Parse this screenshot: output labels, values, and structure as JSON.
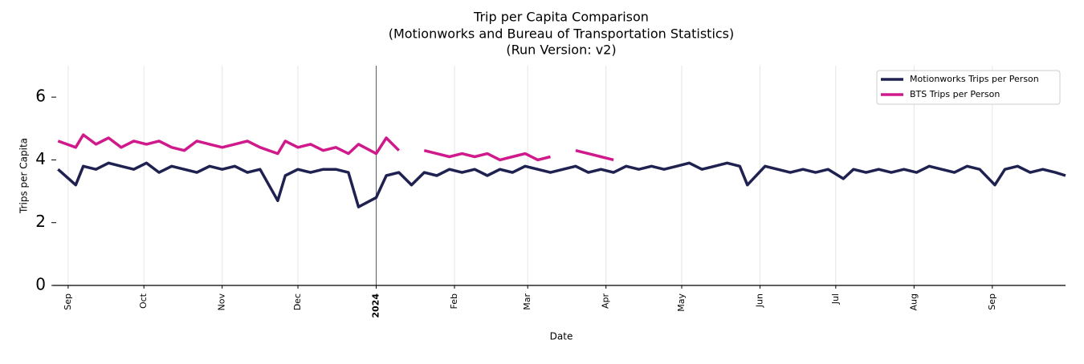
{
  "chart_data": {
    "type": "line",
    "title_lines": [
      "Trip per Capita Comparison",
      "(Motionworks and Bureau of Transportation Statistics)",
      "(Run Version: v2)"
    ],
    "x_label": "Date",
    "y_label": "Trips per Capita",
    "x": [
      "2023-08-28",
      "2023-09-04",
      "2023-09-07",
      "2023-09-12",
      "2023-09-17",
      "2023-09-22",
      "2023-09-27",
      "2023-10-02",
      "2023-10-07",
      "2023-10-12",
      "2023-10-17",
      "2023-10-22",
      "2023-10-27",
      "2023-11-01",
      "2023-11-06",
      "2023-11-11",
      "2023-11-16",
      "2023-11-23",
      "2023-11-26",
      "2023-12-01",
      "2023-12-06",
      "2023-12-11",
      "2023-12-16",
      "2023-12-21",
      "2023-12-25",
      "2024-01-01",
      "2024-01-05",
      "2024-01-10",
      "2024-01-15",
      "2024-01-20",
      "2024-01-25",
      "2024-01-30",
      "2024-02-04",
      "2024-02-09",
      "2024-02-14",
      "2024-02-19",
      "2024-02-24",
      "2024-02-29",
      "2024-03-05",
      "2024-03-10",
      "2024-03-15",
      "2024-03-20",
      "2024-03-25",
      "2024-03-30",
      "2024-04-04",
      "2024-04-09",
      "2024-04-14",
      "2024-04-19",
      "2024-04-24",
      "2024-04-29",
      "2024-05-04",
      "2024-05-09",
      "2024-05-14",
      "2024-05-19",
      "2024-05-24",
      "2024-05-27",
      "2024-06-03",
      "2024-06-08",
      "2024-06-13",
      "2024-06-18",
      "2024-06-23",
      "2024-06-28",
      "2024-07-04",
      "2024-07-08",
      "2024-07-13",
      "2024-07-18",
      "2024-07-23",
      "2024-07-28",
      "2024-08-02",
      "2024-08-07",
      "2024-08-12",
      "2024-08-17",
      "2024-08-22",
      "2024-08-27",
      "2024-09-02",
      "2024-09-06",
      "2024-09-11",
      "2024-09-16",
      "2024-09-21",
      "2024-09-26",
      "2024-09-30"
    ],
    "series": [
      {
        "name": "Motionworks Trips per Person",
        "color": "#1f2150",
        "values": [
          3.7,
          3.2,
          3.8,
          3.7,
          3.9,
          3.8,
          3.7,
          3.9,
          3.6,
          3.8,
          3.7,
          3.6,
          3.8,
          3.7,
          3.8,
          3.6,
          3.7,
          2.7,
          3.5,
          3.7,
          3.6,
          3.7,
          3.7,
          3.6,
          2.5,
          2.8,
          3.5,
          3.6,
          3.2,
          3.6,
          3.5,
          3.7,
          3.6,
          3.7,
          3.5,
          3.7,
          3.6,
          3.8,
          3.7,
          3.6,
          3.7,
          3.8,
          3.6,
          3.7,
          3.6,
          3.8,
          3.7,
          3.8,
          3.7,
          3.8,
          3.9,
          3.7,
          3.8,
          3.9,
          3.8,
          3.2,
          3.8,
          3.7,
          3.6,
          3.7,
          3.6,
          3.7,
          3.4,
          3.7,
          3.6,
          3.7,
          3.6,
          3.7,
          3.6,
          3.8,
          3.7,
          3.6,
          3.8,
          3.7,
          3.2,
          3.7,
          3.8,
          3.6,
          3.7,
          3.6,
          3.5
        ]
      },
      {
        "name": "BTS Trips per Person",
        "color": "#d0198a",
        "values": [
          4.6,
          4.4,
          4.8,
          4.5,
          4.7,
          4.4,
          4.6,
          4.5,
          4.6,
          4.4,
          4.3,
          4.6,
          4.5,
          4.4,
          4.5,
          4.6,
          4.4,
          4.2,
          4.6,
          4.4,
          4.5,
          4.3,
          4.4,
          4.2,
          4.5,
          4.2,
          4.7,
          4.3,
          null,
          4.3,
          4.2,
          4.1,
          4.2,
          4.1,
          4.2,
          4.0,
          4.1,
          4.2,
          4.0,
          4.1,
          null,
          4.3,
          4.2,
          4.1,
          4.0,
          null,
          null,
          null,
          null,
          null,
          null,
          null,
          null,
          null,
          null,
          null,
          null,
          null,
          null,
          null,
          null,
          null,
          null,
          null,
          null,
          null,
          null,
          null,
          null,
          null,
          null,
          null,
          null,
          null,
          null,
          null,
          null,
          null,
          null,
          null,
          null
        ]
      }
    ],
    "xlim": [
      "2023-08-26",
      "2024-09-30"
    ],
    "xticks": [
      {
        "value": "2023-09-01",
        "label": "Sep"
      },
      {
        "value": "2023-10-01",
        "label": "Oct"
      },
      {
        "value": "2023-11-01",
        "label": "Nov"
      },
      {
        "value": "2023-12-01",
        "label": "Dec"
      },
      {
        "value": "2024-01-01",
        "label": "2024"
      },
      {
        "value": "2024-02-01",
        "label": "Feb"
      },
      {
        "value": "2024-03-01",
        "label": "Mar"
      },
      {
        "value": "2024-04-01",
        "label": "Apr"
      },
      {
        "value": "2024-05-01",
        "label": "May"
      },
      {
        "value": "2024-06-01",
        "label": "Jun"
      },
      {
        "value": "2024-07-01",
        "label": "Jul"
      },
      {
        "value": "2024-08-01",
        "label": "Aug"
      },
      {
        "value": "2024-09-01",
        "label": "Sep"
      }
    ],
    "ylim": [
      0,
      7
    ],
    "yticks": [
      0,
      2,
      4,
      6
    ],
    "grid": true,
    "legend": "upper right"
  }
}
